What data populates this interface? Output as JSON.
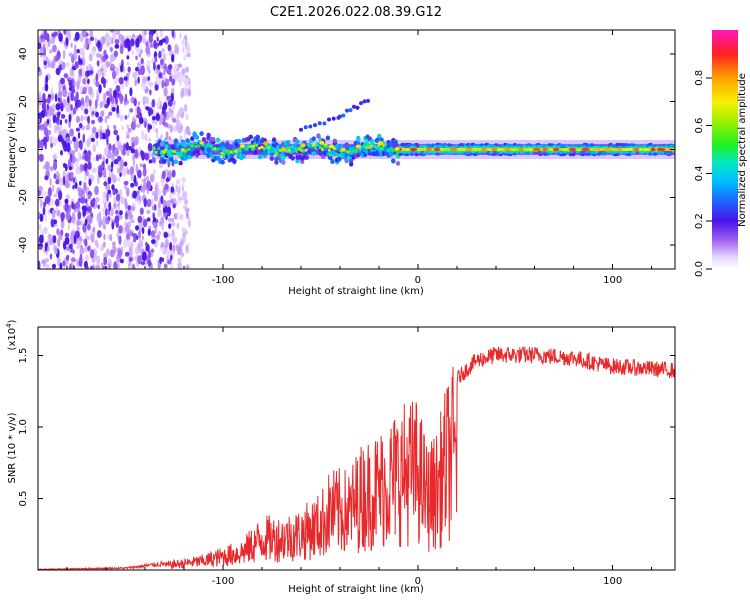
{
  "title": "C2E1.2026.022.08.39.G12",
  "chart_data": [
    {
      "type": "heatmap",
      "xlabel": "Height of straight line (km)",
      "ylabel": "Frequency (Hz)",
      "xlim": [
        -195,
        132
      ],
      "ylim": [
        -50,
        50
      ],
      "xticks": [
        -100,
        0,
        100
      ],
      "yticks": [
        -40,
        -20,
        0,
        20,
        40
      ],
      "colorbar": {
        "label": "Normalized spectral amplitude",
        "range": [
          0,
          1
        ],
        "ticks": [
          "0.0",
          "0.2",
          "0.4",
          "0.6",
          "0.8"
        ],
        "tick_values": [
          0,
          0.2,
          0.4,
          0.6,
          0.8
        ]
      },
      "features": {
        "noise_region_x": [
          -195,
          -125
        ],
        "signal_center_freq_hz": 0,
        "signal_onset_x_km": -135,
        "strong_signal_onset_x_km": -10,
        "secondary_branch": [
          [
            -60,
            8
          ],
          [
            -40,
            14
          ],
          [
            -25,
            21
          ]
        ]
      }
    },
    {
      "type": "line",
      "xlabel": "Height of straight line (km)",
      "ylabel": "SNR (10 * v/v)",
      "y_multiplier": "(x10^4)",
      "xlim": [
        -195,
        132
      ],
      "ylim": [
        0,
        17000
      ],
      "xticks": [
        -100,
        0,
        100
      ],
      "yticks": [
        5000,
        10000,
        15000
      ],
      "ytick_labels": [
        "0.5",
        "1.0",
        "1.5"
      ],
      "series": [
        {
          "name": "SNR",
          "color": "#e8292b",
          "envelope": [
            [
              -195,
              50
            ],
            [
              -150,
              150
            ],
            [
              -130,
              500
            ],
            [
              -110,
              1000
            ],
            [
              -90,
              2000
            ],
            [
              -80,
              3500
            ],
            [
              -70,
              3500
            ],
            [
              -60,
              4000
            ],
            [
              -50,
              5000
            ],
            [
              -45,
              6500
            ],
            [
              -35,
              6500
            ],
            [
              -30,
              8000
            ],
            [
              -20,
              9000
            ],
            [
              -10,
              10500
            ],
            [
              -5,
              11000
            ],
            [
              0,
              11000
            ],
            [
              5,
              8000
            ],
            [
              10,
              9000
            ],
            [
              13,
              11000
            ],
            [
              16,
              12500
            ],
            [
              20,
              13500
            ],
            [
              30,
              14800
            ],
            [
              40,
              15200
            ],
            [
              60,
              15200
            ],
            [
              80,
              15000
            ],
            [
              95,
              14500
            ],
            [
              100,
              14400
            ],
            [
              132,
              14100
            ]
          ]
        }
      ]
    }
  ]
}
